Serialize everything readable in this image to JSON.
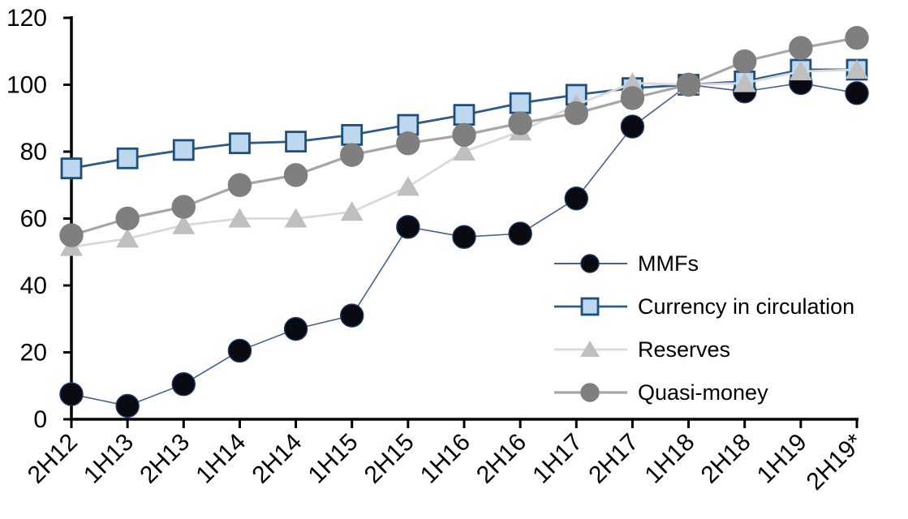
{
  "chart_data": {
    "type": "line",
    "title": "",
    "xlabel": "",
    "ylabel": "",
    "categories": [
      "2H12",
      "1H13",
      "2H13",
      "1H14",
      "2H14",
      "1H15",
      "2H15",
      "1H16",
      "2H16",
      "1H17",
      "2H17",
      "1H18",
      "2H18",
      "1H19",
      "2H19*"
    ],
    "series": [
      {
        "name": "MMFs",
        "marker": "circle",
        "marker_color": "#0a0a12",
        "marker_edge": "#1f3864",
        "line_color": "#46608f",
        "line_width": 1.6,
        "marker_radius": 14,
        "values": [
          7.5,
          4,
          10.5,
          20.5,
          27,
          31,
          57.5,
          54.5,
          55.5,
          66,
          87.5,
          100,
          98,
          100.5,
          97.5
        ]
      },
      {
        "name": "Currency in circulation",
        "marker": "square",
        "marker_color": "#bdd7ee",
        "marker_edge": "#1f4e79",
        "line_color": "#2e5c8a",
        "line_width": 2.8,
        "marker_radius": 12,
        "values": [
          75,
          78,
          80.5,
          82.5,
          83,
          85,
          88,
          91,
          94.5,
          97,
          99,
          100,
          101,
          104.5,
          104.5
        ]
      },
      {
        "name": "Reserves",
        "marker": "triangle",
        "marker_color": "#bfbfbf",
        "marker_edge": "#bfbfbf",
        "line_color": "#d9d9d9",
        "line_width": 2.8,
        "marker_radius": 13,
        "values": [
          51.5,
          54,
          58,
          60,
          60,
          62,
          69.5,
          80,
          86,
          94,
          100.5,
          100,
          100.5,
          104,
          104.5
        ]
      },
      {
        "name": "Quasi-money",
        "marker": "circle",
        "marker_color": "#7f7f7f",
        "marker_edge": "#7f7f7f",
        "line_color": "#a6a6a6",
        "line_width": 3.2,
        "marker_radius": 14,
        "values": [
          55,
          60,
          63.5,
          70,
          73,
          79,
          82.5,
          85,
          88.5,
          91.5,
          96,
          100,
          107,
          111,
          114
        ]
      }
    ],
    "ylim": [
      0,
      120
    ],
    "yticks": [
      0,
      20,
      40,
      60,
      80,
      100,
      120
    ],
    "x_tick_rotation": -45,
    "grid": false,
    "legend_position": "inside-right",
    "axis_color": "#000000",
    "background": "#ffffff"
  }
}
